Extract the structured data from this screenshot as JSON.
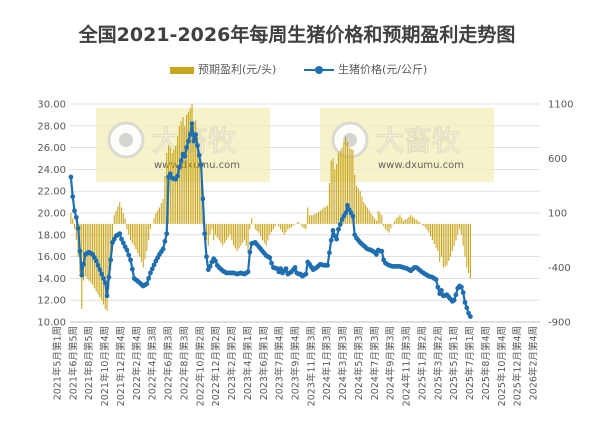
{
  "title": "全国2021-2026年每周生猪价格和预期盈利走势图",
  "watermark": {
    "brand": "大畜牧",
    "site": "www.dxumu.com"
  },
  "colors": {
    "bar": "#C9A61A",
    "line": "#1F6FB0",
    "grid": "#D9D9D9",
    "axis": "#BFBFBF",
    "watermark_bg": "#F3EDB8"
  },
  "chart_data": {
    "type": "bar+line",
    "legend": [
      "预期盈利(元/头)",
      "生猪价格(元/公斤)"
    ],
    "legend_position": "top",
    "grid": true,
    "y_left": {
      "min": 10,
      "max": 30,
      "ticks": [
        "10.00",
        "12.00",
        "14.00",
        "16.00",
        "18.00",
        "20.00",
        "22.00",
        "24.00",
        "26.00",
        "28.00",
        "30.00"
      ]
    },
    "y_right": {
      "min": -900,
      "max": 1100,
      "ticks": [
        "-900",
        "-400",
        "100",
        "600",
        "1100"
      ]
    },
    "x_tick_labels": [
      "2021年5月第1周",
      "2021年6月第5周",
      "2021年8月第5周",
      "2021年10月第4周",
      "2021年12月第4周",
      "2022年2月第4周",
      "2022年4月第3周",
      "2022年6月第3周",
      "2022年8月第3周",
      "2022年10月第2周",
      "2022年12月第2周",
      "2023年2月第2周",
      "2023年4月第1周",
      "2023年6月第1周",
      "2023年7月第4周",
      "2023年9月第4周",
      "2023年11月第3周",
      "2024年1月第3周",
      "2024年3月第3周",
      "2024年5月第3周",
      "2024年7月第3周",
      "2024年9月第3周",
      "2024年11月第3周",
      "2025年1月第2周",
      "2025年3月第2周",
      "2025年5月第1周",
      "2025年7月第1周",
      "2025年8月第4周",
      "2025年10月第4周",
      "2025年12月第4周",
      "2026年2月第4周"
    ],
    "weeks": 260,
    "price_keypoints": [
      [
        0,
        23.3
      ],
      [
        1,
        21.5
      ],
      [
        2,
        20.2
      ],
      [
        3,
        19.6
      ],
      [
        4,
        18.6
      ],
      [
        5,
        16.5
      ],
      [
        6,
        14.3
      ],
      [
        7,
        15.3
      ],
      [
        8,
        16.2
      ],
      [
        10,
        16.4
      ],
      [
        12,
        16.2
      ],
      [
        14,
        15.6
      ],
      [
        17,
        14.4
      ],
      [
        19,
        13.6
      ],
      [
        20,
        12.4
      ],
      [
        21,
        14.1
      ],
      [
        23,
        17.3
      ],
      [
        25,
        17.9
      ],
      [
        27,
        18.1
      ],
      [
        28,
        17.6
      ],
      [
        30,
        16.9
      ],
      [
        31,
        16.6
      ],
      [
        33,
        15.7
      ],
      [
        35,
        14.0
      ],
      [
        38,
        13.6
      ],
      [
        40,
        13.3
      ],
      [
        42,
        13.5
      ],
      [
        44,
        14.5
      ],
      [
        47,
        15.6
      ],
      [
        49,
        16.2
      ],
      [
        51,
        16.7
      ],
      [
        53,
        18.1
      ],
      [
        54,
        23.3
      ],
      [
        55,
        23.6
      ],
      [
        56,
        23.2
      ],
      [
        58,
        23.1
      ],
      [
        59,
        23.4
      ],
      [
        60,
        24.2
      ],
      [
        62,
        25.4
      ],
      [
        63,
        25.2
      ],
      [
        64,
        26.0
      ],
      [
        66,
        27.2
      ],
      [
        67,
        28.2
      ],
      [
        68,
        26.6
      ],
      [
        69,
        27.2
      ],
      [
        70,
        26.2
      ],
      [
        72,
        24.4
      ],
      [
        73,
        21.3
      ],
      [
        74,
        18.1
      ],
      [
        75,
        16.0
      ],
      [
        76,
        14.8
      ],
      [
        77,
        15.1
      ],
      [
        78,
        15.5
      ],
      [
        79,
        15.8
      ],
      [
        80,
        15.6
      ],
      [
        81,
        15.2
      ],
      [
        82,
        15.0
      ],
      [
        84,
        14.7
      ],
      [
        86,
        14.5
      ],
      [
        88,
        14.5
      ],
      [
        90,
        14.5
      ],
      [
        92,
        14.4
      ],
      [
        94,
        14.5
      ],
      [
        96,
        14.4
      ],
      [
        98,
        14.6
      ],
      [
        99,
        16.4
      ],
      [
        100,
        17.2
      ],
      [
        102,
        17.3
      ],
      [
        104,
        16.9
      ],
      [
        106,
        16.5
      ],
      [
        108,
        16.1
      ],
      [
        110,
        15.9
      ],
      [
        111,
        15.4
      ],
      [
        112,
        15.0
      ],
      [
        114,
        14.9
      ],
      [
        115,
        14.6
      ],
      [
        116,
        14.9
      ],
      [
        117,
        14.5
      ],
      [
        118,
        14.7
      ],
      [
        119,
        14.9
      ],
      [
        120,
        14.4
      ],
      [
        121,
        14.5
      ],
      [
        122,
        14.6
      ],
      [
        124,
        15.0
      ],
      [
        125,
        14.5
      ],
      [
        126,
        14.4
      ],
      [
        127,
        14.4
      ],
      [
        128,
        14.2
      ],
      [
        130,
        14.4
      ],
      [
        131,
        15.5
      ],
      [
        132,
        15.3
      ],
      [
        134,
        14.8
      ],
      [
        136,
        15.0
      ],
      [
        138,
        15.3
      ],
      [
        140,
        15.2
      ],
      [
        142,
        15.2
      ],
      [
        144,
        17.5
      ],
      [
        145,
        18.4
      ],
      [
        146,
        17.9
      ],
      [
        147,
        17.6
      ],
      [
        148,
        18.5
      ],
      [
        150,
        19.4
      ],
      [
        152,
        20.0
      ],
      [
        153,
        20.7
      ],
      [
        154,
        20.3
      ],
      [
        156,
        19.7
      ],
      [
        157,
        18.0
      ],
      [
        158,
        17.7
      ],
      [
        160,
        17.3
      ],
      [
        162,
        17.0
      ],
      [
        164,
        16.7
      ],
      [
        166,
        16.6
      ],
      [
        168,
        16.4
      ],
      [
        169,
        16.2
      ],
      [
        170,
        16.6
      ],
      [
        171,
        16.5
      ],
      [
        172,
        16.5
      ],
      [
        173,
        15.7
      ],
      [
        174,
        15.4
      ],
      [
        176,
        15.2
      ],
      [
        178,
        15.1
      ],
      [
        180,
        15.1
      ],
      [
        182,
        15.1
      ],
      [
        184,
        15.0
      ],
      [
        186,
        14.9
      ],
      [
        188,
        14.7
      ],
      [
        190,
        15.0
      ],
      [
        191,
        15.0
      ],
      [
        192,
        14.9
      ],
      [
        194,
        14.6
      ],
      [
        196,
        14.4
      ],
      [
        198,
        14.2
      ],
      [
        200,
        14.1
      ],
      [
        202,
        13.9
      ],
      [
        203,
        13.2
      ],
      [
        204,
        12.6
      ],
      [
        205,
        12.9
      ],
      [
        206,
        12.4
      ],
      [
        208,
        12.5
      ],
      [
        210,
        12.1
      ],
      [
        211,
        11.9
      ],
      [
        212,
        12.0
      ],
      [
        213,
        12.5
      ],
      [
        214,
        13.1
      ],
      [
        215,
        13.3
      ],
      [
        216,
        13.2
      ],
      [
        217,
        12.7
      ],
      [
        218,
        11.8
      ],
      [
        219,
        11.3
      ],
      [
        220,
        10.8
      ],
      [
        221,
        10.5
      ]
    ],
    "profit_keypoints": [
      [
        0,
        100
      ],
      [
        1,
        50
      ],
      [
        2,
        -50
      ],
      [
        3,
        -150
      ],
      [
        4,
        -300
      ],
      [
        5,
        -450
      ],
      [
        6,
        -780
      ],
      [
        7,
        -520
      ],
      [
        8,
        -480
      ],
      [
        10,
        -520
      ],
      [
        12,
        -560
      ],
      [
        14,
        -620
      ],
      [
        17,
        -700
      ],
      [
        19,
        -780
      ],
      [
        20,
        -800
      ],
      [
        21,
        -600
      ],
      [
        23,
        -250
      ],
      [
        24,
        80
      ],
      [
        25,
        120
      ],
      [
        27,
        200
      ],
      [
        28,
        150
      ],
      [
        30,
        50
      ],
      [
        31,
        -50
      ],
      [
        33,
        -150
      ],
      [
        35,
        -200
      ],
      [
        38,
        -300
      ],
      [
        40,
        -400
      ],
      [
        42,
        -250
      ],
      [
        44,
        -50
      ],
      [
        47,
        100
      ],
      [
        49,
        150
      ],
      [
        51,
        230
      ],
      [
        53,
        650
      ],
      [
        54,
        720
      ],
      [
        55,
        700
      ],
      [
        56,
        650
      ],
      [
        58,
        720
      ],
      [
        59,
        800
      ],
      [
        60,
        900
      ],
      [
        62,
        980
      ],
      [
        63,
        900
      ],
      [
        64,
        1000
      ],
      [
        66,
        1060
      ],
      [
        67,
        1100
      ],
      [
        68,
        900
      ],
      [
        69,
        950
      ],
      [
        70,
        800
      ],
      [
        72,
        450
      ],
      [
        73,
        200
      ],
      [
        74,
        -100
      ],
      [
        75,
        -150
      ],
      [
        76,
        -200
      ],
      [
        77,
        -100
      ],
      [
        78,
        -50
      ],
      [
        79,
        -150
      ],
      [
        80,
        -100
      ],
      [
        82,
        -150
      ],
      [
        84,
        -200
      ],
      [
        86,
        -150
      ],
      [
        88,
        -100
      ],
      [
        90,
        -200
      ],
      [
        92,
        -250
      ],
      [
        94,
        -200
      ],
      [
        96,
        -150
      ],
      [
        98,
        -250
      ],
      [
        99,
        -50
      ],
      [
        100,
        50
      ],
      [
        102,
        -50
      ],
      [
        104,
        -80
      ],
      [
        106,
        -150
      ],
      [
        108,
        -200
      ],
      [
        110,
        -100
      ],
      [
        112,
        -50
      ],
      [
        114,
        0
      ],
      [
        116,
        -50
      ],
      [
        118,
        -100
      ],
      [
        120,
        -50
      ],
      [
        122,
        -30
      ],
      [
        124,
        0
      ],
      [
        126,
        20
      ],
      [
        128,
        -30
      ],
      [
        130,
        -50
      ],
      [
        131,
        150
      ],
      [
        132,
        80
      ],
      [
        134,
        80
      ],
      [
        136,
        100
      ],
      [
        138,
        120
      ],
      [
        140,
        150
      ],
      [
        142,
        170
      ],
      [
        144,
        580
      ],
      [
        145,
        600
      ],
      [
        146,
        500
      ],
      [
        147,
        550
      ],
      [
        148,
        650
      ],
      [
        150,
        700
      ],
      [
        152,
        800
      ],
      [
        153,
        750
      ],
      [
        154,
        700
      ],
      [
        156,
        680
      ],
      [
        157,
        450
      ],
      [
        158,
        350
      ],
      [
        160,
        300
      ],
      [
        162,
        200
      ],
      [
        164,
        150
      ],
      [
        166,
        100
      ],
      [
        168,
        50
      ],
      [
        169,
        30
      ],
      [
        170,
        120
      ],
      [
        171,
        100
      ],
      [
        172,
        80
      ],
      [
        173,
        -20
      ],
      [
        174,
        -50
      ],
      [
        176,
        -80
      ],
      [
        178,
        0
      ],
      [
        180,
        50
      ],
      [
        182,
        80
      ],
      [
        184,
        30
      ],
      [
        186,
        50
      ],
      [
        188,
        80
      ],
      [
        190,
        50
      ],
      [
        192,
        30
      ],
      [
        194,
        0
      ],
      [
        196,
        -30
      ],
      [
        198,
        -80
      ],
      [
        200,
        -150
      ],
      [
        202,
        -220
      ],
      [
        203,
        -250
      ],
      [
        204,
        -350
      ],
      [
        205,
        -300
      ],
      [
        206,
        -400
      ],
      [
        208,
        -380
      ],
      [
        210,
        -300
      ],
      [
        211,
        -250
      ],
      [
        212,
        -200
      ],
      [
        213,
        -150
      ],
      [
        214,
        -100
      ],
      [
        215,
        -50
      ],
      [
        216,
        -100
      ],
      [
        217,
        -200
      ],
      [
        218,
        -300
      ],
      [
        219,
        -400
      ],
      [
        220,
        -450
      ],
      [
        221,
        -500
      ]
    ]
  }
}
